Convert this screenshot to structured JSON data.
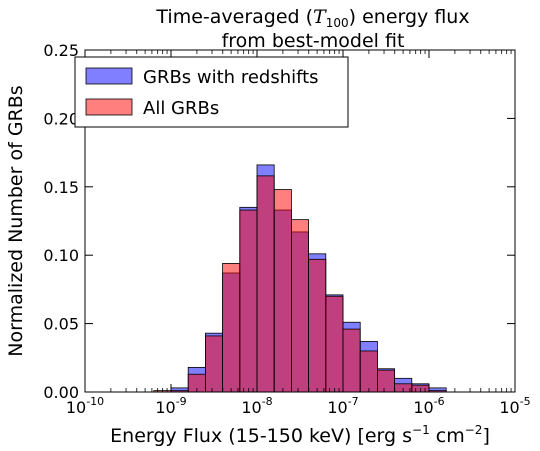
{
  "chart_data": {
    "type": "bar",
    "title_prefix": "Time-averaged (",
    "title_symbol": "T",
    "title_subscript": "100",
    "title_suffix": ") energy flux",
    "title_line2": "from best-model fit",
    "xlabel_prefix": "Energy Flux (15-150 keV) [erg s",
    "xlabel_exp1": "−1",
    "xlabel_mid": " cm",
    "xlabel_exp2": "−2",
    "xlabel_suffix": "]",
    "ylabel": "Normalized Number of GRBs",
    "x_scale": "log",
    "xlim": [
      1e-10,
      1e-05
    ],
    "ylim": [
      0,
      0.25
    ],
    "x_ticks": [
      {
        "value": 1e-10,
        "base": "10",
        "exp": "-10"
      },
      {
        "value": 1e-09,
        "base": "10",
        "exp": "-9"
      },
      {
        "value": 1e-08,
        "base": "10",
        "exp": "-8"
      },
      {
        "value": 1e-07,
        "base": "10",
        "exp": "-7"
      },
      {
        "value": 1e-06,
        "base": "10",
        "exp": "-6"
      },
      {
        "value": 1e-05,
        "base": "10",
        "exp": "-5"
      }
    ],
    "y_ticks": [
      {
        "value": 0,
        "label": "0.00"
      },
      {
        "value": 0.05,
        "label": "0.05"
      },
      {
        "value": 0.1,
        "label": "0.10"
      },
      {
        "value": 0.15,
        "label": "0.15"
      },
      {
        "value": 0.2,
        "label": "0.20"
      },
      {
        "value": 0.25,
        "label": "0.25"
      }
    ],
    "bin_edges": [
      6.31e-10,
      1e-09,
      1.585e-09,
      2.512e-09,
      3.981e-09,
      6.31e-09,
      1e-08,
      1.585e-08,
      2.512e-08,
      3.981e-08,
      6.31e-08,
      1e-07,
      1.585e-07,
      2.512e-07,
      3.981e-07,
      6.31e-07,
      1e-06,
      1.585e-06,
      2.512e-06
    ],
    "series": [
      {
        "name": "GRBs with redshifts",
        "color": "#0000ff",
        "opacity": 0.5,
        "values": [
          0.0,
          0.003,
          0.018,
          0.043,
          0.087,
          0.135,
          0.166,
          0.133,
          0.117,
          0.101,
          0.071,
          0.051,
          0.037,
          0.017,
          0.01,
          0.006,
          0.003,
          0.0
        ]
      },
      {
        "name": "All GRBs",
        "color": "#ff0000",
        "opacity": 0.5,
        "values": [
          0.001,
          0.001,
          0.013,
          0.041,
          0.094,
          0.133,
          0.158,
          0.148,
          0.126,
          0.097,
          0.07,
          0.046,
          0.03,
          0.016,
          0.006,
          0.005,
          0.001,
          0.0
        ]
      }
    ],
    "legend_position": "top-left",
    "grid": false
  }
}
